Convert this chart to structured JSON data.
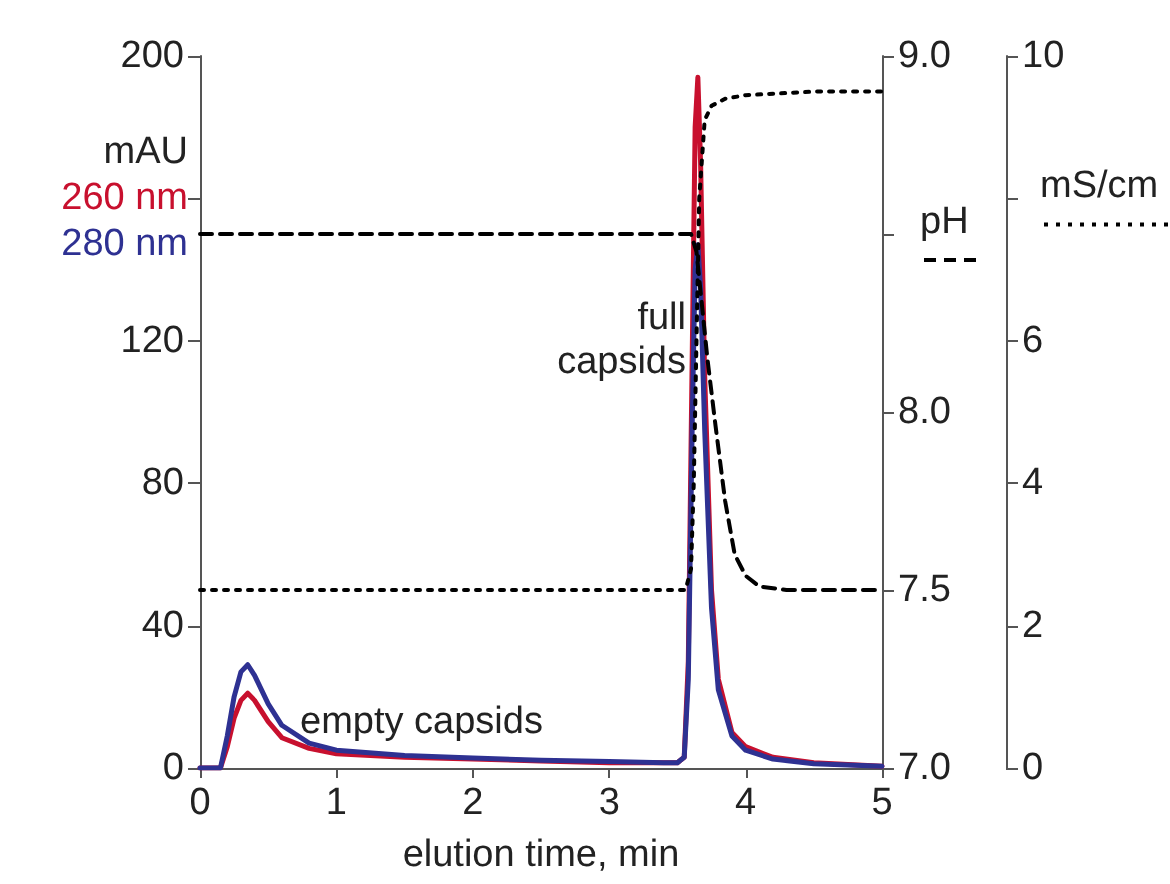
{
  "chart_data": {
    "type": "line",
    "xlabel": "elution time, min",
    "ylabel": "mAU",
    "y2label": "pH",
    "y3label": "mS/cm",
    "xlim": [
      0,
      5
    ],
    "xticks": [
      0,
      1,
      2,
      3,
      4,
      5
    ],
    "ylim": [
      0,
      200
    ],
    "yticks": [
      0,
      40,
      80,
      120,
      {
        "value": 160,
        "label": null
      },
      200
    ],
    "y2lim": [
      7,
      9
    ],
    "y2ticks": [
      {
        "value": 7,
        "label": "7.0"
      },
      {
        "value": 7.5,
        "label": "7.5"
      },
      {
        "value": 8,
        "label": "8.0"
      },
      {
        "value": 8.5,
        "label": null
      },
      {
        "value": 9,
        "label": "9.0"
      }
    ],
    "y3lim": [
      0,
      10
    ],
    "y3ticks": [
      0,
      2,
      4,
      6,
      {
        "value": 8,
        "label": null
      },
      10
    ],
    "grid": false,
    "legend": false,
    "marker": "none",
    "annotations": [
      "empty capsids",
      "full\ncapsids"
    ],
    "series": [
      {
        "name": "260 nm",
        "color": "#c8102e",
        "line_style": "solid",
        "x": [
          0,
          0.15,
          0.2,
          0.25,
          0.3,
          0.35,
          0.4,
          0.5,
          0.6,
          0.8,
          1.0,
          1.5,
          2,
          2.5,
          3,
          3.4,
          3.5,
          3.55,
          3.58,
          3.61,
          3.63,
          3.65,
          3.67,
          3.7,
          3.75,
          3.8,
          3.9,
          4.0,
          4.2,
          4.5,
          5
        ],
        "values": [
          0,
          0,
          6,
          14,
          19,
          21,
          19,
          13,
          8.5,
          5.5,
          4,
          3,
          2.5,
          2,
          1.5,
          1.5,
          1.5,
          3,
          30,
          120,
          180,
          194,
          170,
          110,
          50,
          25,
          10,
          6,
          3,
          1.5,
          0.5
        ]
      },
      {
        "name": "280 nm",
        "color": "#2e3192",
        "line_style": "solid",
        "x": [
          0,
          0.15,
          0.2,
          0.25,
          0.3,
          0.35,
          0.4,
          0.5,
          0.6,
          0.8,
          1.0,
          1.5,
          2,
          2.5,
          3,
          3.4,
          3.5,
          3.55,
          3.58,
          3.61,
          3.63,
          3.65,
          3.67,
          3.7,
          3.75,
          3.8,
          3.9,
          4.0,
          4.2,
          4.5,
          5
        ],
        "values": [
          0,
          0,
          9,
          20,
          27,
          29,
          26,
          18,
          12,
          7,
          5,
          3.5,
          2.8,
          2.2,
          1.8,
          1.5,
          1.5,
          3,
          25,
          100,
          140,
          147,
          135,
          95,
          45,
          22,
          9,
          5,
          2.5,
          1.2,
          0.5
        ]
      },
      {
        "color": "#000000",
        "axis": "y2",
        "line_style": "dashed",
        "x": [
          0,
          3.6,
          3.64,
          3.68,
          3.72,
          3.78,
          3.85,
          3.92,
          4.0,
          4.1,
          4.3,
          5
        ],
        "values": [
          8.5,
          8.5,
          8.45,
          8.3,
          8.15,
          7.96,
          7.75,
          7.6,
          7.54,
          7.51,
          7.5,
          7.5
        ]
      },
      {
        "color": "#000000",
        "axis": "y3",
        "line_style": "dotted",
        "x": [
          0,
          3.56,
          3.6,
          3.62,
          3.64,
          3.66,
          3.7,
          3.75,
          3.85,
          4.0,
          4.5,
          5
        ],
        "values": [
          2.5,
          2.5,
          2.8,
          4,
          6,
          8,
          9.1,
          9.3,
          9.4,
          9.45,
          9.5,
          9.5
        ]
      }
    ]
  }
}
